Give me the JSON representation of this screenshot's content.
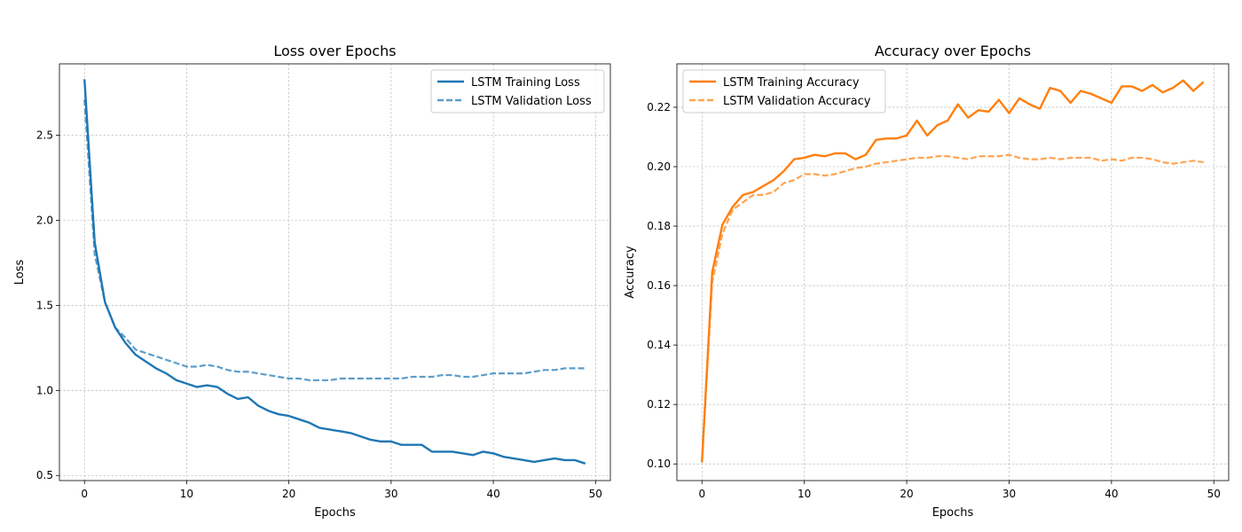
{
  "chart_data": [
    {
      "type": "line",
      "title": "Loss over Epochs",
      "xlabel": "Epochs",
      "ylabel": "Loss",
      "xlim": [
        -2.45,
        51.45
      ],
      "ylim": [
        0.47,
        2.92
      ],
      "xticks": [
        0,
        10,
        20,
        30,
        40,
        50
      ],
      "yticks": [
        0.5,
        1.0,
        1.5,
        2.0,
        2.5
      ],
      "xtick_labels": [
        "0",
        "10",
        "20",
        "30",
        "40",
        "50"
      ],
      "ytick_labels": [
        "0.5",
        "1.0",
        "1.5",
        "2.0",
        "2.5"
      ],
      "grid": true,
      "legend_position": "upper right",
      "series": [
        {
          "name": "LSTM Training Loss",
          "style": "solid",
          "color": "#1f77b4",
          "x": [
            0,
            1,
            2,
            3,
            4,
            5,
            6,
            7,
            8,
            9,
            10,
            11,
            12,
            13,
            14,
            15,
            16,
            17,
            18,
            19,
            20,
            21,
            22,
            23,
            24,
            25,
            26,
            27,
            28,
            29,
            30,
            31,
            32,
            33,
            34,
            35,
            36,
            37,
            38,
            39,
            40,
            41,
            42,
            43,
            44,
            45,
            46,
            47,
            48,
            49
          ],
          "values": [
            2.83,
            1.87,
            1.52,
            1.37,
            1.28,
            1.21,
            1.17,
            1.13,
            1.1,
            1.06,
            1.04,
            1.02,
            1.03,
            1.02,
            0.98,
            0.95,
            0.96,
            0.91,
            0.88,
            0.86,
            0.85,
            0.83,
            0.81,
            0.78,
            0.77,
            0.76,
            0.75,
            0.73,
            0.71,
            0.7,
            0.7,
            0.68,
            0.68,
            0.68,
            0.64,
            0.64,
            0.64,
            0.63,
            0.62,
            0.64,
            0.63,
            0.61,
            0.6,
            0.59,
            0.58,
            0.59,
            0.6,
            0.59,
            0.59,
            0.57
          ]
        },
        {
          "name": "LSTM Validation Loss",
          "style": "dashed",
          "color": "#1f77b4",
          "x": [
            0,
            1,
            2,
            3,
            4,
            5,
            6,
            7,
            8,
            9,
            10,
            11,
            12,
            13,
            14,
            15,
            16,
            17,
            18,
            19,
            20,
            21,
            22,
            23,
            24,
            25,
            26,
            27,
            28,
            29,
            30,
            31,
            32,
            33,
            34,
            35,
            36,
            37,
            38,
            39,
            40,
            41,
            42,
            43,
            44,
            45,
            46,
            47,
            48,
            49
          ],
          "values": [
            2.71,
            1.8,
            1.52,
            1.37,
            1.31,
            1.24,
            1.22,
            1.2,
            1.18,
            1.16,
            1.14,
            1.14,
            1.15,
            1.14,
            1.12,
            1.11,
            1.11,
            1.1,
            1.09,
            1.08,
            1.07,
            1.07,
            1.06,
            1.06,
            1.06,
            1.07,
            1.07,
            1.07,
            1.07,
            1.07,
            1.07,
            1.07,
            1.08,
            1.08,
            1.08,
            1.09,
            1.09,
            1.08,
            1.08,
            1.09,
            1.1,
            1.1,
            1.1,
            1.1,
            1.11,
            1.12,
            1.12,
            1.13,
            1.13,
            1.13
          ]
        }
      ]
    },
    {
      "type": "line",
      "title": "Accuracy over Epochs",
      "xlabel": "Epochs",
      "ylabel": "Accuracy",
      "xlim": [
        -2.45,
        51.45
      ],
      "ylim": [
        0.0944,
        0.2346
      ],
      "xticks": [
        0,
        10,
        20,
        30,
        40,
        50
      ],
      "yticks": [
        0.1,
        0.12,
        0.14,
        0.16,
        0.18,
        0.2,
        0.22
      ],
      "xtick_labels": [
        "0",
        "10",
        "20",
        "30",
        "40",
        "50"
      ],
      "ytick_labels": [
        "0.10",
        "0.12",
        "0.14",
        "0.16",
        "0.18",
        "0.20",
        "0.22"
      ],
      "grid": true,
      "legend_position": "upper left",
      "series": [
        {
          "name": "LSTM Training Accuracy",
          "style": "solid",
          "color": "#ff7f0e",
          "x": [
            0,
            1,
            2,
            3,
            4,
            5,
            6,
            7,
            8,
            9,
            10,
            11,
            12,
            13,
            14,
            15,
            16,
            17,
            18,
            19,
            20,
            21,
            22,
            23,
            24,
            25,
            26,
            27,
            28,
            29,
            30,
            31,
            32,
            33,
            34,
            35,
            36,
            37,
            38,
            39,
            40,
            41,
            42,
            43,
            44,
            45,
            46,
            47,
            48,
            49
          ],
          "values": [
            0.1005,
            0.1645,
            0.1805,
            0.1865,
            0.1905,
            0.1915,
            0.1935,
            0.1955,
            0.1985,
            0.2025,
            0.203,
            0.204,
            0.2035,
            0.2045,
            0.2045,
            0.2025,
            0.204,
            0.209,
            0.2095,
            0.2095,
            0.2105,
            0.2155,
            0.2105,
            0.214,
            0.2155,
            0.221,
            0.2165,
            0.219,
            0.2185,
            0.2225,
            0.218,
            0.223,
            0.221,
            0.2195,
            0.2265,
            0.2255,
            0.2215,
            0.2255,
            0.2245,
            0.223,
            0.2215,
            0.227,
            0.227,
            0.2255,
            0.2275,
            0.225,
            0.2265,
            0.229,
            0.2255,
            0.2285
          ]
        },
        {
          "name": "LSTM Validation Accuracy",
          "style": "dashed",
          "color": "#ff7f0e",
          "x": [
            0,
            1,
            2,
            3,
            4,
            5,
            6,
            7,
            8,
            9,
            10,
            11,
            12,
            13,
            14,
            15,
            16,
            17,
            18,
            19,
            20,
            21,
            22,
            23,
            24,
            25,
            26,
            27,
            28,
            29,
            30,
            31,
            32,
            33,
            34,
            35,
            36,
            37,
            38,
            39,
            40,
            41,
            42,
            43,
            44,
            45,
            46,
            47,
            48,
            49
          ],
          "values": [
            0.101,
            0.161,
            0.1775,
            0.1855,
            0.188,
            0.1905,
            0.1905,
            0.1915,
            0.1945,
            0.1955,
            0.1975,
            0.1975,
            0.197,
            0.1975,
            0.1985,
            0.1995,
            0.2,
            0.201,
            0.2015,
            0.202,
            0.2025,
            0.203,
            0.203,
            0.2035,
            0.2035,
            0.203,
            0.2025,
            0.2035,
            0.2035,
            0.2035,
            0.204,
            0.203,
            0.2025,
            0.2025,
            0.203,
            0.2025,
            0.203,
            0.203,
            0.203,
            0.202,
            0.2025,
            0.202,
            0.203,
            0.203,
            0.2025,
            0.2015,
            0.201,
            0.2015,
            0.202,
            0.2015
          ]
        }
      ]
    }
  ]
}
